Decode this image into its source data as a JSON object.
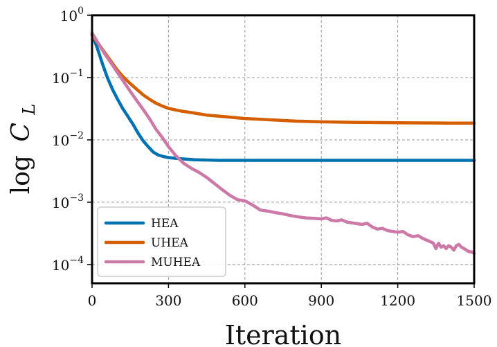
{
  "chart_data": {
    "type": "line",
    "title": "",
    "xlabel": "Iteration",
    "ylabel_text": "log",
    "ylabel_symbol": "C",
    "ylabel_subscript": "L",
    "yscale": "log",
    "xlim": [
      0,
      1500
    ],
    "ylim": [
      5e-05,
      1
    ],
    "x_ticks": [
      0,
      300,
      600,
      900,
      1200,
      1500
    ],
    "y_ticks": [
      {
        "value": 1,
        "base": "10",
        "exp": "0"
      },
      {
        "value": 0.1,
        "base": "10",
        "exp": "−1"
      },
      {
        "value": 0.01,
        "base": "10",
        "exp": "−2"
      },
      {
        "value": 0.001,
        "base": "10",
        "exp": "−3"
      },
      {
        "value": 0.0001,
        "base": "10",
        "exp": "−4"
      }
    ],
    "grid": true,
    "legend_position": "bottom-left",
    "series": [
      {
        "name": "HEA",
        "color": "#0072b2",
        "points": [
          [
            0,
            0.5
          ],
          [
            20,
            0.3
          ],
          [
            40,
            0.17
          ],
          [
            60,
            0.1
          ],
          [
            80,
            0.065
          ],
          [
            100,
            0.045
          ],
          [
            120,
            0.032
          ],
          [
            140,
            0.024
          ],
          [
            160,
            0.018
          ],
          [
            180,
            0.013
          ],
          [
            200,
            0.0097
          ],
          [
            220,
            0.0078
          ],
          [
            240,
            0.0064
          ],
          [
            260,
            0.0057
          ],
          [
            280,
            0.0054
          ],
          [
            300,
            0.0052
          ],
          [
            340,
            0.005
          ],
          [
            400,
            0.0048
          ],
          [
            500,
            0.0047
          ],
          [
            700,
            0.0047
          ],
          [
            1000,
            0.0047
          ],
          [
            1500,
            0.0047
          ]
        ]
      },
      {
        "name": "UHEA",
        "color": "#d55e00",
        "points": [
          [
            0,
            0.48
          ],
          [
            25,
            0.35
          ],
          [
            50,
            0.25
          ],
          [
            75,
            0.18
          ],
          [
            100,
            0.13
          ],
          [
            125,
            0.1
          ],
          [
            150,
            0.08
          ],
          [
            175,
            0.065
          ],
          [
            200,
            0.053
          ],
          [
            225,
            0.045
          ],
          [
            250,
            0.039
          ],
          [
            275,
            0.035
          ],
          [
            300,
            0.032
          ],
          [
            350,
            0.029
          ],
          [
            400,
            0.027
          ],
          [
            450,
            0.025
          ],
          [
            500,
            0.024
          ],
          [
            600,
            0.022
          ],
          [
            700,
            0.021
          ],
          [
            800,
            0.02
          ],
          [
            900,
            0.0195
          ],
          [
            1000,
            0.0192
          ],
          [
            1100,
            0.019
          ],
          [
            1200,
            0.0188
          ],
          [
            1300,
            0.0187
          ],
          [
            1400,
            0.0186
          ],
          [
            1500,
            0.0186
          ]
        ]
      },
      {
        "name": "MUHEA",
        "color": "#cc79a7",
        "points": [
          [
            0,
            0.52
          ],
          [
            25,
            0.35
          ],
          [
            50,
            0.24
          ],
          [
            75,
            0.17
          ],
          [
            100,
            0.12
          ],
          [
            125,
            0.085
          ],
          [
            150,
            0.06
          ],
          [
            175,
            0.043
          ],
          [
            200,
            0.031
          ],
          [
            225,
            0.022
          ],
          [
            250,
            0.015
          ],
          [
            275,
            0.011
          ],
          [
            300,
            0.0078
          ],
          [
            330,
            0.0055
          ],
          [
            360,
            0.0042
          ],
          [
            390,
            0.0035
          ],
          [
            420,
            0.003
          ],
          [
            450,
            0.0025
          ],
          [
            480,
            0.002
          ],
          [
            510,
            0.0016
          ],
          [
            540,
            0.0013
          ],
          [
            570,
            0.0011
          ],
          [
            600,
            0.00105
          ],
          [
            620,
            0.00095
          ],
          [
            640,
            0.00085
          ],
          [
            660,
            0.00075
          ],
          [
            690,
            0.00072
          ],
          [
            720,
            0.00068
          ],
          [
            750,
            0.00065
          ],
          [
            780,
            0.00061
          ],
          [
            810,
            0.00058
          ],
          [
            840,
            0.00056
          ],
          [
            870,
            0.00055
          ],
          [
            900,
            0.00054
          ],
          [
            920,
            0.00056
          ],
          [
            940,
            0.00051
          ],
          [
            960,
            0.0005
          ],
          [
            980,
            0.00052
          ],
          [
            1000,
            0.00048
          ],
          [
            1030,
            0.00046
          ],
          [
            1060,
            0.00044
          ],
          [
            1080,
            0.00046
          ],
          [
            1100,
            0.0004
          ],
          [
            1120,
            0.00037
          ],
          [
            1140,
            0.00038
          ],
          [
            1160,
            0.00035
          ],
          [
            1180,
            0.00034
          ],
          [
            1200,
            0.00033
          ],
          [
            1220,
            0.00034
          ],
          [
            1240,
            0.0003
          ],
          [
            1260,
            0.00028
          ],
          [
            1280,
            0.00029
          ],
          [
            1300,
            0.00026
          ],
          [
            1320,
            0.00024
          ],
          [
            1340,
            0.00022
          ],
          [
            1350,
            0.00018
          ],
          [
            1360,
            0.00022
          ],
          [
            1370,
            0.00019
          ],
          [
            1380,
            0.0002
          ],
          [
            1390,
            0.00018
          ],
          [
            1400,
            0.0002
          ],
          [
            1410,
            0.00019
          ],
          [
            1420,
            0.00017
          ],
          [
            1430,
            0.0002
          ],
          [
            1440,
            0.00021
          ],
          [
            1450,
            0.00019
          ],
          [
            1460,
            0.00018
          ],
          [
            1470,
            0.00017
          ],
          [
            1480,
            0.00016
          ],
          [
            1490,
            0.00016
          ],
          [
            1500,
            0.00015
          ]
        ]
      }
    ]
  }
}
